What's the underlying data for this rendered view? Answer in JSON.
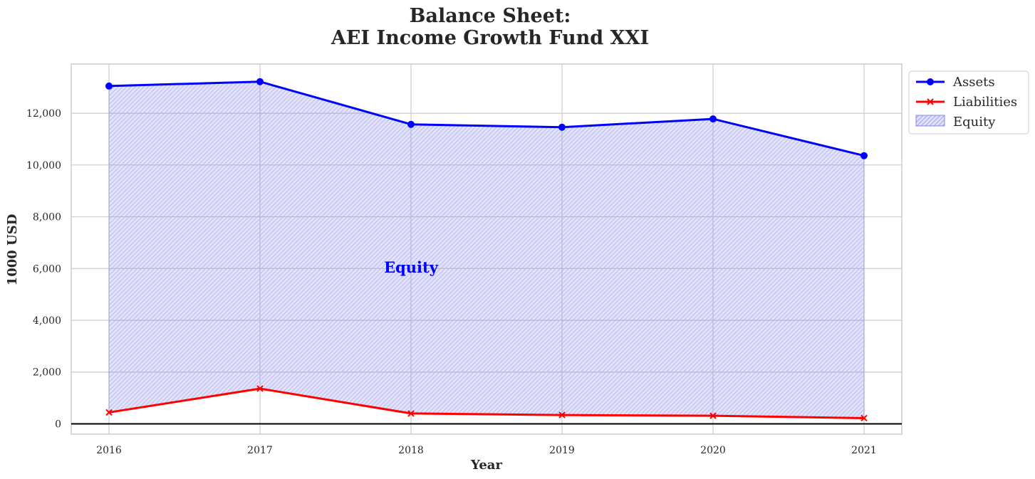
{
  "chart_data": {
    "type": "area",
    "title": [
      "Balance Sheet:",
      "AEI Income Growth Fund XXI"
    ],
    "xlabel": "Year",
    "ylabel": "1000 USD",
    "x": [
      "2016",
      "2017",
      "2018",
      "2019",
      "2020",
      "2021"
    ],
    "ylim": [
      -400,
      13900
    ],
    "yticks": [
      0,
      2000,
      4000,
      6000,
      8000,
      10000,
      12000
    ],
    "ytick_labels": [
      "0",
      "2,000",
      "4,000",
      "6,000",
      "8,000",
      "10,000",
      "12,000"
    ],
    "grid": true,
    "legend_position": "upper-right-outside",
    "series": [
      {
        "name": "Assets",
        "values": [
          13050,
          13220,
          11570,
          11460,
          11780,
          10360
        ],
        "color": "#0000ff",
        "marker": "circle"
      },
      {
        "name": "Liabilities",
        "values": [
          440,
          1360,
          400,
          340,
          310,
          220
        ],
        "color": "#ff0000",
        "marker": "x"
      }
    ],
    "fill": {
      "name": "Equity",
      "between": [
        "Liabilities",
        "Assets"
      ],
      "color": "#0000ff",
      "hatch": "////"
    },
    "annotation": {
      "text": "Equity",
      "x": "2018",
      "y": 6000,
      "color": "#0000ff"
    },
    "zero_line_color": "#000000"
  }
}
